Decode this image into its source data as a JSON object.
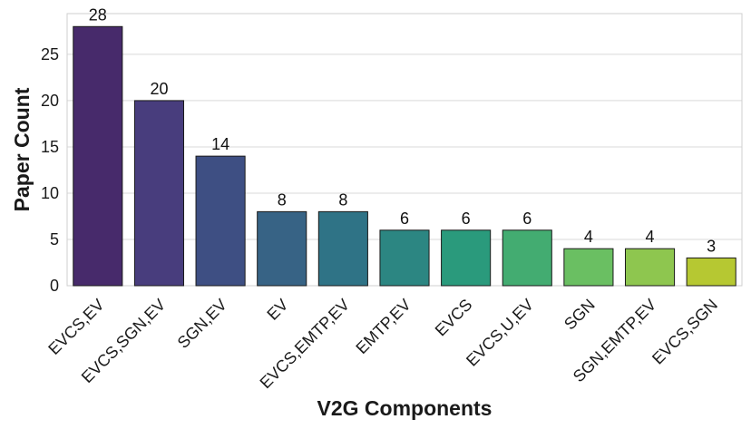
{
  "chart_data": {
    "type": "bar",
    "title": "",
    "xlabel": "V2G Components",
    "ylabel": "Paper Count",
    "categories": [
      "EVCS,EV",
      "EVCS,SGN,EV",
      "SGN,EV",
      "EV",
      "EVCS,EMTP,EV",
      "EMTP,EV",
      "EVCS",
      "EVCS,U,EV",
      "SGN",
      "SGN,EMTP,EV",
      "EVCS,SGN"
    ],
    "values": [
      28,
      20,
      14,
      8,
      8,
      6,
      6,
      6,
      4,
      4,
      3
    ],
    "data_labels": [
      "28",
      "20",
      "14",
      "8",
      "8",
      "6",
      "6",
      "6",
      "4",
      "4",
      "3"
    ],
    "colors": [
      "#472a6b",
      "#483d7d",
      "#3e4f83",
      "#376385",
      "#2f7386",
      "#2c8682",
      "#2a9a7c",
      "#43ac71",
      "#6abf62",
      "#8ec64f",
      "#b6c832"
    ],
    "yticks": [
      0,
      5,
      10,
      15,
      20,
      25
    ],
    "ytick_labels": [
      "0",
      "5",
      "10",
      "15",
      "20",
      "25"
    ],
    "ylim": [
      0,
      29.4
    ],
    "grid": "horizontal",
    "bar_edge_color": "#1a1a1a",
    "grid_color": "#d9d9d9",
    "frame_color": "#cfcfcf"
  }
}
